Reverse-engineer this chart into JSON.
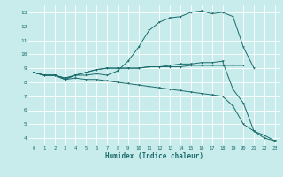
{
  "xlabel": "Humidex (Indice chaleur)",
  "bg_color": "#c8ecec",
  "grid_color": "#ffffff",
  "line_color": "#1a6b6b",
  "xlim": [
    -0.5,
    23.5
  ],
  "ylim": [
    3.5,
    13.5
  ],
  "xticks": [
    0,
    1,
    2,
    3,
    4,
    5,
    6,
    7,
    8,
    9,
    10,
    11,
    12,
    13,
    14,
    15,
    16,
    17,
    18,
    19,
    20,
    21,
    22,
    23
  ],
  "yticks": [
    4,
    5,
    6,
    7,
    8,
    9,
    10,
    11,
    12,
    13
  ],
  "line1_x": [
    0,
    1,
    2,
    3,
    4,
    5,
    6,
    7,
    8,
    9,
    10,
    11,
    12,
    13,
    14,
    15,
    16,
    17,
    18,
    19,
    20,
    21
  ],
  "line1_y": [
    8.7,
    8.5,
    8.5,
    8.2,
    8.5,
    8.5,
    8.6,
    8.5,
    8.8,
    9.5,
    10.5,
    11.7,
    12.3,
    12.6,
    12.7,
    13.0,
    13.1,
    12.9,
    13.0,
    12.7,
    10.5,
    9.0
  ],
  "line2_x": [
    0,
    1,
    2,
    3,
    4,
    5,
    6,
    7,
    8,
    9,
    10,
    11,
    12,
    13,
    14,
    15,
    16,
    17,
    18,
    19,
    20
  ],
  "line2_y": [
    8.7,
    8.5,
    8.5,
    8.3,
    8.5,
    8.7,
    8.9,
    9.0,
    9.0,
    9.0,
    9.0,
    9.1,
    9.1,
    9.1,
    9.1,
    9.2,
    9.2,
    9.2,
    9.2,
    9.2,
    9.2
  ],
  "line3_x": [
    0,
    1,
    2,
    3,
    4,
    5,
    6,
    7,
    8,
    9,
    10,
    11,
    12,
    13,
    14,
    15,
    16,
    17,
    18,
    19,
    20,
    21,
    22,
    23
  ],
  "line3_y": [
    8.7,
    8.5,
    8.5,
    8.2,
    8.3,
    8.2,
    8.2,
    8.1,
    8.0,
    7.9,
    7.8,
    7.7,
    7.6,
    7.5,
    7.4,
    7.3,
    7.2,
    7.1,
    7.0,
    6.3,
    5.0,
    4.5,
    4.0,
    3.8
  ],
  "line4_x": [
    0,
    1,
    2,
    3,
    4,
    5,
    6,
    7,
    8,
    9,
    10,
    11,
    12,
    13,
    14,
    15,
    16,
    17,
    18,
    19,
    20,
    21,
    22,
    23
  ],
  "line4_y": [
    8.7,
    8.5,
    8.5,
    8.3,
    8.5,
    8.7,
    8.9,
    9.0,
    9.0,
    9.0,
    9.0,
    9.1,
    9.1,
    9.2,
    9.3,
    9.3,
    9.4,
    9.4,
    9.5,
    7.5,
    6.5,
    4.5,
    4.2,
    3.8
  ]
}
